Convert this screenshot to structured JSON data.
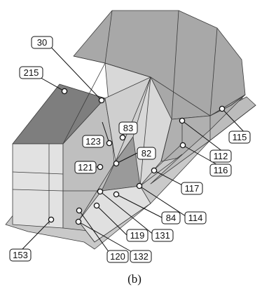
{
  "caption": "(b)",
  "nodes": [
    {
      "label": "30"
    },
    {
      "label": "215"
    },
    {
      "label": "83"
    },
    {
      "label": "123"
    },
    {
      "label": "82"
    },
    {
      "label": "121"
    },
    {
      "label": "115"
    },
    {
      "label": "112"
    },
    {
      "label": "116"
    },
    {
      "label": "117"
    },
    {
      "label": "84"
    },
    {
      "label": "114"
    },
    {
      "label": "131"
    },
    {
      "label": "119"
    },
    {
      "label": "153"
    },
    {
      "label": "120"
    },
    {
      "label": "132"
    }
  ]
}
